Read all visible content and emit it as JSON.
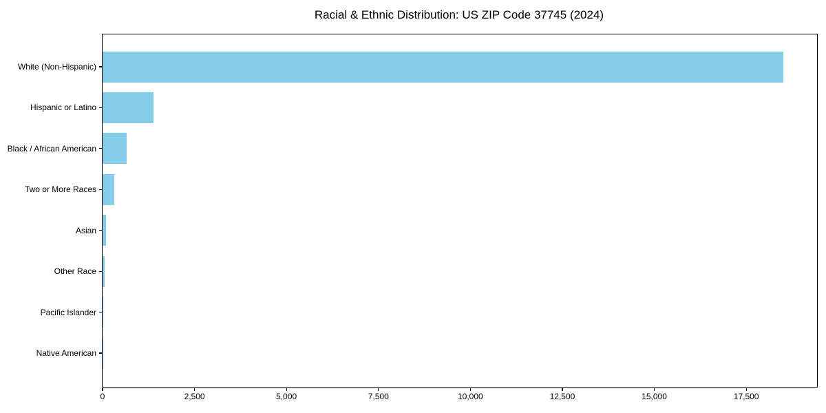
{
  "title": "Racial & Ethnic Distribution: US ZIP Code 37745 (2024)",
  "colors": {
    "bar": "#87CEEB",
    "axis": "#000000",
    "text": "#000000",
    "background": "#FFFFFF"
  },
  "chart_data": {
    "type": "bar",
    "orientation": "horizontal",
    "title": "Racial & Ethnic Distribution: US ZIP Code 37745 (2024)",
    "categories": [
      "White (Non-Hispanic)",
      "Hispanic or Latino",
      "Black / African American",
      "Two or More Races",
      "Asian",
      "Other Race",
      "Pacific Islander",
      "Native American"
    ],
    "values": [
      18500,
      1390,
      660,
      320,
      90,
      50,
      15,
      10
    ],
    "xlabel": "",
    "ylabel": "",
    "xlim": [
      0,
      19425
    ],
    "xticks": [
      0,
      2500,
      5000,
      7500,
      10000,
      12500,
      15000,
      17500
    ],
    "xtick_labels": [
      "0",
      "2,500",
      "5,000",
      "7,500",
      "10,000",
      "12,500",
      "15,000",
      "17,500"
    ],
    "grid": false,
    "legend": null,
    "bar_color": "#87CEEB"
  }
}
